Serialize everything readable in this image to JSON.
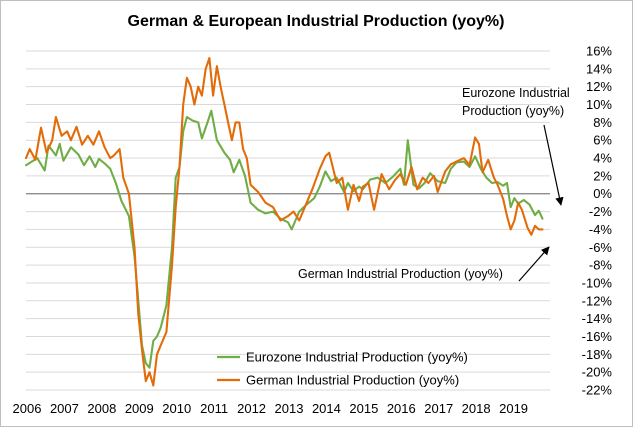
{
  "chart_data": {
    "type": "line",
    "title": "German & European Industrial Production (yoy%)",
    "xlabel": "",
    "ylabel": "",
    "x_range": [
      2006.0,
      2020.0
    ],
    "ylim": [
      -22,
      16
    ],
    "y_ticks": [
      16,
      14,
      12,
      10,
      8,
      6,
      4,
      2,
      0,
      -2,
      -4,
      -6,
      -8,
      -10,
      -12,
      -14,
      -16,
      -18,
      -20,
      -22
    ],
    "y_tick_labels": [
      "16%",
      "14%",
      "12%",
      "10%",
      "8%",
      "6%",
      "4%",
      "2%",
      "0%",
      "-2%",
      "-4%",
      "-6%",
      "-8%",
      "-10%",
      "-12%",
      "-14%",
      "-16%",
      "-18%",
      "-20%",
      "-22%"
    ],
    "x_tick_labels": [
      "2006",
      "2007",
      "2008",
      "2009",
      "2010",
      "2011",
      "2012",
      "2013",
      "2014",
      "2015",
      "2016",
      "2017",
      "2018",
      "2019"
    ],
    "grid": true,
    "y_axis_side": "right",
    "legend_position": "bottom-center",
    "series": [
      {
        "name": "Eurozone Industrial Production (yoy%)",
        "color": "#70ad47",
        "points": [
          [
            2006.0,
            3.2
          ],
          [
            2006.3,
            4.0
          ],
          [
            2006.5,
            2.6
          ],
          [
            2006.6,
            5.4
          ],
          [
            2006.8,
            4.3
          ],
          [
            2006.9,
            5.6
          ],
          [
            2007.0,
            3.7
          ],
          [
            2007.2,
            5.2
          ],
          [
            2007.4,
            4.4
          ],
          [
            2007.55,
            3.2
          ],
          [
            2007.7,
            4.2
          ],
          [
            2007.85,
            3.0
          ],
          [
            2007.95,
            3.9
          ],
          [
            2008.1,
            3.4
          ],
          [
            2008.25,
            2.8
          ],
          [
            2008.4,
            1.2
          ],
          [
            2008.55,
            -0.8
          ],
          [
            2008.75,
            -2.5
          ],
          [
            2008.9,
            -7.0
          ],
          [
            2009.0,
            -12.0
          ],
          [
            2009.1,
            -17.0
          ],
          [
            2009.2,
            -19.0
          ],
          [
            2009.3,
            -19.5
          ],
          [
            2009.4,
            -16.5
          ],
          [
            2009.5,
            -16.0
          ],
          [
            2009.6,
            -15.0
          ],
          [
            2009.75,
            -12.5
          ],
          [
            2009.9,
            -6.0
          ],
          [
            2010.0,
            1.8
          ],
          [
            2010.1,
            3.0
          ],
          [
            2010.2,
            7.0
          ],
          [
            2010.3,
            8.6
          ],
          [
            2010.45,
            8.2
          ],
          [
            2010.6,
            8.0
          ],
          [
            2010.7,
            6.2
          ],
          [
            2010.85,
            8.0
          ],
          [
            2010.95,
            9.3
          ],
          [
            2011.1,
            6.0
          ],
          [
            2011.3,
            4.6
          ],
          [
            2011.45,
            3.8
          ],
          [
            2011.55,
            2.4
          ],
          [
            2011.7,
            3.8
          ],
          [
            2011.85,
            2.0
          ],
          [
            2012.0,
            -1.0
          ],
          [
            2012.2,
            -1.8
          ],
          [
            2012.4,
            -2.2
          ],
          [
            2012.6,
            -2.0
          ],
          [
            2012.8,
            -2.8
          ],
          [
            2013.0,
            -3.2
          ],
          [
            2013.1,
            -4.0
          ],
          [
            2013.3,
            -2.0
          ],
          [
            2013.5,
            -1.2
          ],
          [
            2013.7,
            -0.5
          ],
          [
            2013.85,
            0.8
          ],
          [
            2014.0,
            2.5
          ],
          [
            2014.15,
            1.4
          ],
          [
            2014.3,
            1.8
          ],
          [
            2014.5,
            0.2
          ],
          [
            2014.6,
            1.2
          ],
          [
            2014.75,
            0.3
          ],
          [
            2014.9,
            0.8
          ],
          [
            2015.0,
            0.5
          ],
          [
            2015.2,
            1.6
          ],
          [
            2015.4,
            1.8
          ],
          [
            2015.6,
            1.2
          ],
          [
            2015.8,
            1.9
          ],
          [
            2016.0,
            2.8
          ],
          [
            2016.1,
            1.0
          ],
          [
            2016.2,
            6.0
          ],
          [
            2016.35,
            1.0
          ],
          [
            2016.5,
            0.6
          ],
          [
            2016.65,
            1.2
          ],
          [
            2016.8,
            2.3
          ],
          [
            2017.0,
            1.4
          ],
          [
            2017.2,
            1.2
          ],
          [
            2017.35,
            2.8
          ],
          [
            2017.5,
            3.5
          ],
          [
            2017.7,
            3.6
          ],
          [
            2017.85,
            3.0
          ],
          [
            2018.0,
            4.2
          ],
          [
            2018.15,
            2.8
          ],
          [
            2018.3,
            1.8
          ],
          [
            2018.45,
            1.2
          ],
          [
            2018.6,
            1.3
          ],
          [
            2018.75,
            0.9
          ],
          [
            2018.85,
            1.2
          ],
          [
            2018.95,
            -1.5
          ],
          [
            2019.05,
            -0.5
          ],
          [
            2019.15,
            -1.1
          ],
          [
            2019.3,
            -0.7
          ],
          [
            2019.45,
            -1.2
          ],
          [
            2019.6,
            -2.4
          ],
          [
            2019.7,
            -1.9
          ],
          [
            2019.8,
            -2.8
          ]
        ]
      },
      {
        "name": "German Industrial Production (yoy%)",
        "color": "#e36c0a",
        "points": [
          [
            2006.0,
            4.0
          ],
          [
            2006.1,
            5.0
          ],
          [
            2006.25,
            3.8
          ],
          [
            2006.4,
            7.4
          ],
          [
            2006.55,
            4.6
          ],
          [
            2006.7,
            6.0
          ],
          [
            2006.8,
            8.6
          ],
          [
            2006.95,
            6.5
          ],
          [
            2007.1,
            7.0
          ],
          [
            2007.2,
            6.0
          ],
          [
            2007.35,
            7.5
          ],
          [
            2007.5,
            5.5
          ],
          [
            2007.65,
            6.5
          ],
          [
            2007.8,
            5.5
          ],
          [
            2007.95,
            7.0
          ],
          [
            2008.1,
            5.2
          ],
          [
            2008.25,
            4.0
          ],
          [
            2008.35,
            4.3
          ],
          [
            2008.5,
            5.0
          ],
          [
            2008.6,
            1.8
          ],
          [
            2008.75,
            0.0
          ],
          [
            2008.9,
            -6.0
          ],
          [
            2009.0,
            -13.5
          ],
          [
            2009.1,
            -17.5
          ],
          [
            2009.2,
            -21.0
          ],
          [
            2009.3,
            -20.0
          ],
          [
            2009.4,
            -21.5
          ],
          [
            2009.5,
            -18.0
          ],
          [
            2009.6,
            -17.0
          ],
          [
            2009.75,
            -15.5
          ],
          [
            2009.9,
            -8.0
          ],
          [
            2010.0,
            -1.5
          ],
          [
            2010.1,
            3.0
          ],
          [
            2010.2,
            10.0
          ],
          [
            2010.3,
            13.0
          ],
          [
            2010.4,
            12.0
          ],
          [
            2010.5,
            10.0
          ],
          [
            2010.6,
            12.0
          ],
          [
            2010.7,
            11.0
          ],
          [
            2010.8,
            14.0
          ],
          [
            2010.9,
            15.2
          ],
          [
            2011.0,
            11.0
          ],
          [
            2011.1,
            14.3
          ],
          [
            2011.2,
            12.0
          ],
          [
            2011.3,
            10.0
          ],
          [
            2011.4,
            8.0
          ],
          [
            2011.5,
            6.0
          ],
          [
            2011.6,
            8.0
          ],
          [
            2011.7,
            8.0
          ],
          [
            2011.8,
            5.0
          ],
          [
            2011.9,
            4.0
          ],
          [
            2012.0,
            1.0
          ],
          [
            2012.2,
            0.2
          ],
          [
            2012.4,
            -1.0
          ],
          [
            2012.6,
            -1.5
          ],
          [
            2012.8,
            -3.0
          ],
          [
            2013.0,
            -2.5
          ],
          [
            2013.15,
            -2.0
          ],
          [
            2013.3,
            -3.0
          ],
          [
            2013.5,
            -1.0
          ],
          [
            2013.65,
            0.5
          ],
          [
            2013.85,
            2.8
          ],
          [
            2014.0,
            4.2
          ],
          [
            2014.1,
            4.6
          ],
          [
            2014.3,
            1.2
          ],
          [
            2014.45,
            1.8
          ],
          [
            2014.6,
            -1.8
          ],
          [
            2014.75,
            1.0
          ],
          [
            2014.9,
            -0.8
          ],
          [
            2015.0,
            0.8
          ],
          [
            2015.15,
            1.2
          ],
          [
            2015.3,
            -1.8
          ],
          [
            2015.5,
            2.2
          ],
          [
            2015.7,
            0.5
          ],
          [
            2015.85,
            1.5
          ],
          [
            2016.0,
            2.2
          ],
          [
            2016.15,
            1.0
          ],
          [
            2016.3,
            3.0
          ],
          [
            2016.45,
            0.5
          ],
          [
            2016.6,
            1.8
          ],
          [
            2016.75,
            1.2
          ],
          [
            2016.9,
            2.0
          ],
          [
            2017.0,
            0.2
          ],
          [
            2017.2,
            2.5
          ],
          [
            2017.35,
            3.3
          ],
          [
            2017.5,
            3.6
          ],
          [
            2017.7,
            4.0
          ],
          [
            2017.85,
            3.2
          ],
          [
            2018.0,
            6.3
          ],
          [
            2018.1,
            5.6
          ],
          [
            2018.2,
            2.4
          ],
          [
            2018.35,
            3.8
          ],
          [
            2018.5,
            1.8
          ],
          [
            2018.6,
            1.0
          ],
          [
            2018.75,
            -0.6
          ],
          [
            2018.85,
            -2.5
          ],
          [
            2018.95,
            -4.0
          ],
          [
            2019.05,
            -3.0
          ],
          [
            2019.15,
            -1.0
          ],
          [
            2019.25,
            -1.8
          ],
          [
            2019.4,
            -3.8
          ],
          [
            2019.5,
            -4.6
          ],
          [
            2019.6,
            -3.6
          ],
          [
            2019.7,
            -4.0
          ],
          [
            2019.8,
            -4.0
          ]
        ]
      }
    ],
    "annotations": [
      {
        "lines": [
          "Eurozone Industrial",
          "Production (yoy%)"
        ]
      },
      {
        "lines": [
          "German Industrial Production (yoy%)"
        ]
      }
    ]
  }
}
